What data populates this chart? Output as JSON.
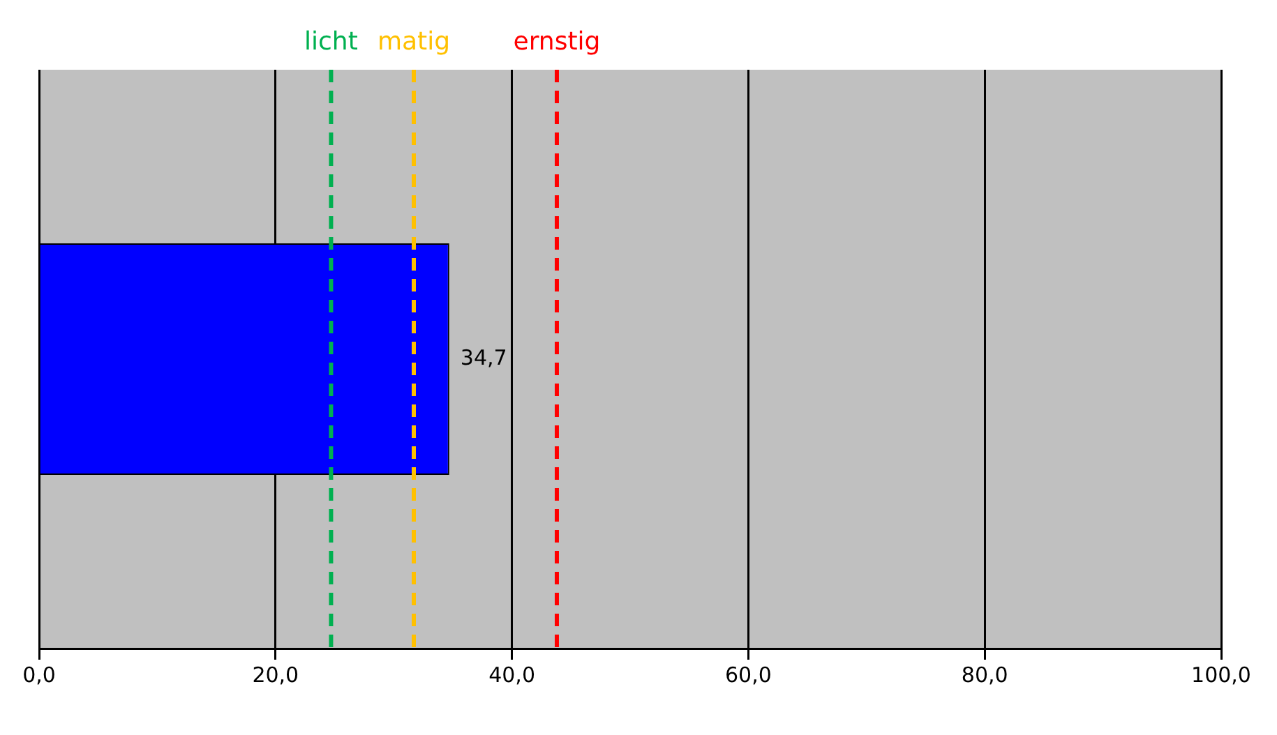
{
  "chart_data": {
    "type": "bar",
    "orientation": "horizontal",
    "categories": [
      null
    ],
    "values": [
      34.7
    ],
    "value_labels": [
      "34,7"
    ],
    "color": "#0000ff",
    "xlim": [
      0,
      100
    ],
    "xticks": [
      {
        "value": 0,
        "label": "0,0"
      },
      {
        "value": 20,
        "label": "20,0"
      },
      {
        "value": 40,
        "label": "40,0"
      },
      {
        "value": 60,
        "label": "60,0"
      },
      {
        "value": 80,
        "label": "80,0"
      },
      {
        "value": 100,
        "label": "100,0"
      }
    ],
    "grid": "x",
    "ref_lines": [
      {
        "axis": "x",
        "value": 24.7,
        "label": "licht",
        "color": "#00b050",
        "line_style": "dashed"
      },
      {
        "axis": "x",
        "value": 31.7,
        "label": "matig",
        "color": "#ffc000",
        "line_style": "dashed"
      },
      {
        "axis": "x",
        "value": 43.8,
        "label": "ernstig",
        "color": "#ff0000",
        "line_style": "dashed"
      }
    ]
  }
}
